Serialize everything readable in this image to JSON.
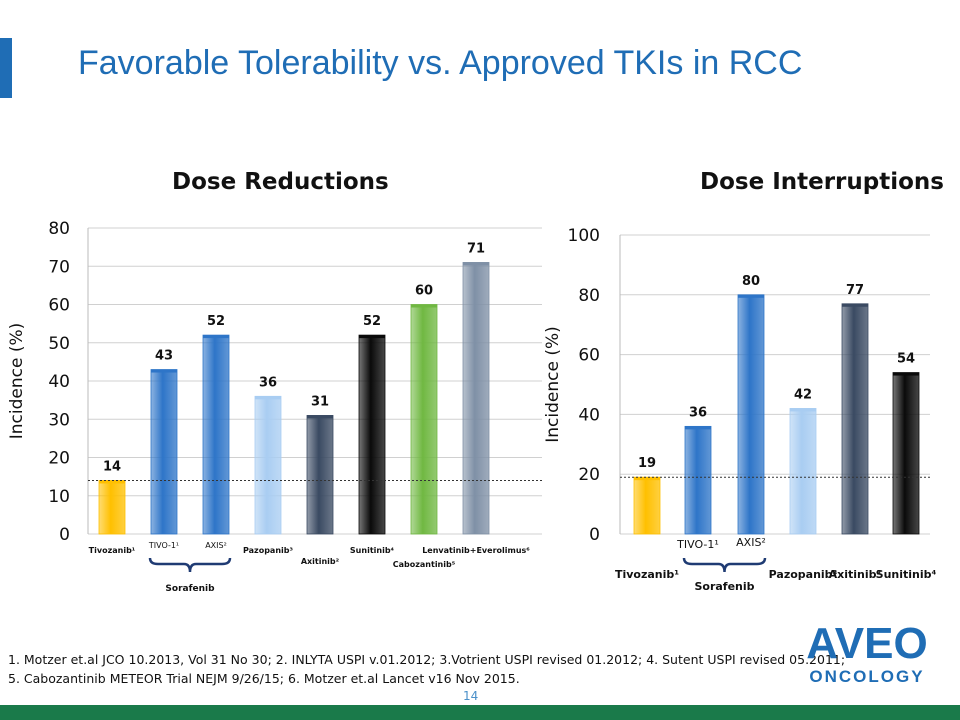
{
  "slide": {
    "title": "Favorable Tolerability vs. Approved TKIs in RCC",
    "page_number": "14",
    "footnote_line1": "1.    Motzer et.al JCO 10.2013, Vol 31 No 30; 2. INLYTA USPI v.01.2012;  3.Votrient USPI revised 01.2012; 4. Sutent USPI revised 05.2011;",
    "footnote_line2": "5. Cabozantinib METEOR Trial NEJM 9/26/15; 6. Motzer et.al Lancet v16 Nov 2015.",
    "logo_top": "AVEO",
    "logo_bottom": "ONCOLOGY"
  },
  "colors": {
    "title": "#1f6db5",
    "bottom_bar": "#1a7a4a",
    "tivozanib": "#ffc000",
    "sorafenib": "#2e75c8",
    "pazopanib": "#a9cdf2",
    "axitinib": "#3a4a62",
    "sunitinib": "#0a0a0a",
    "cabozantinib": "#70b842",
    "lenvatinib": "#7f90a6"
  },
  "chart_data": [
    {
      "type": "bar",
      "title": "Dose Reductions",
      "ylabel": "Incidence (%)",
      "xlabel": "",
      "ylim": [
        0,
        80
      ],
      "yticks": [
        0,
        10,
        20,
        30,
        40,
        50,
        60,
        70,
        80
      ],
      "categories": [
        "Tivozanib¹",
        "TIVO-1¹",
        "AXIS²",
        "Pazopanib³",
        "Axitinib²",
        "Sunitinib⁴",
        "Cabozantinib⁵",
        "Lenvatinib+Everolimus⁶"
      ],
      "values": [
        14,
        43,
        52,
        36,
        31,
        52,
        60,
        71
      ],
      "bar_colors": [
        "tivozanib",
        "sorafenib",
        "sorafenib",
        "pazopanib",
        "axitinib",
        "sunitinib",
        "cabozantinib",
        "lenvatinib"
      ],
      "group_label": "Sorafenib",
      "reference_line": 14
    },
    {
      "type": "bar",
      "title": "Dose Interruptions",
      "ylabel": "Incidence (%)",
      "xlabel": "",
      "ylim": [
        0,
        100
      ],
      "yticks": [
        0,
        20,
        40,
        60,
        80,
        100
      ],
      "categories": [
        "Tivozanib¹",
        "TIVO-1¹",
        "AXIS²",
        "Pazopanib³",
        "Axitinib²",
        "Sunitinib⁴"
      ],
      "values": [
        19,
        36,
        80,
        42,
        77,
        54
      ],
      "bar_colors": [
        "tivozanib",
        "sorafenib",
        "sorafenib",
        "pazopanib",
        "axitinib",
        "sunitinib"
      ],
      "group_label": "Sorafenib",
      "reference_line": 19
    }
  ]
}
